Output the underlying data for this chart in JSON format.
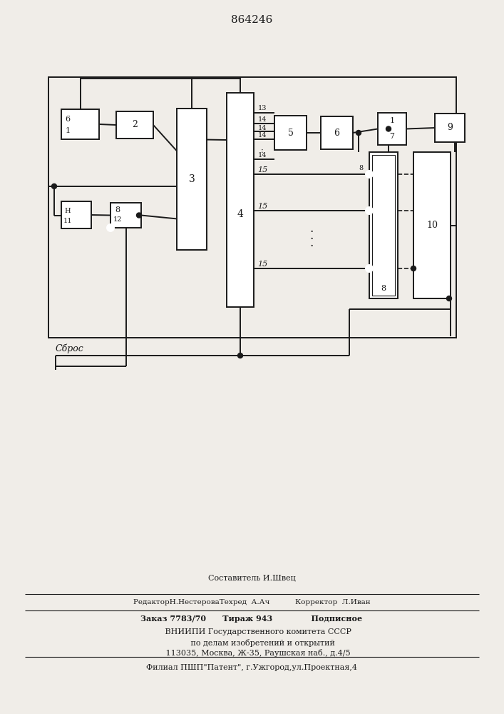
{
  "title": "864246",
  "bg_color": "#f0ede8",
  "line_color": "#1a1a1a",
  "lw": 1.4,
  "footer_lines": [
    "Составитель И.Швец",
    "РедакторН.НестероваТехред  А.Ач           Корректор  Л.Иван",
    "Заказ 7783/70      Тираж 943              Подписное",
    "     ВНИИПИ Государственного комитета СССР",
    "         по делам изобретений и открытий",
    "     113035, Москва, Ж-35, Раушская наб., д.4/5",
    "Филиал ПШП\"Патент\", г.Ужгород,ул.Проектная,4"
  ]
}
